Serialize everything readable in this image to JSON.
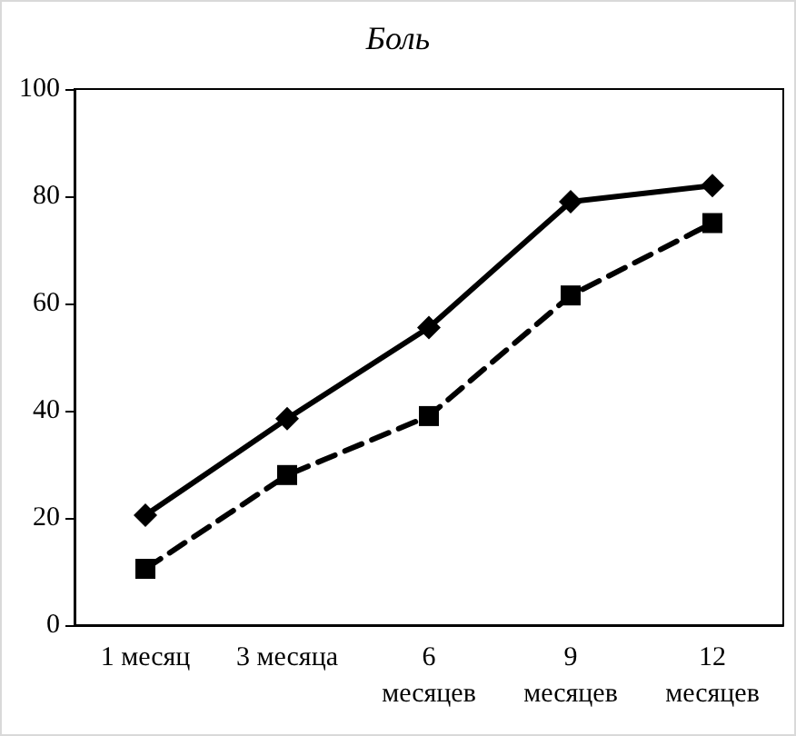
{
  "chart_data": {
    "type": "line",
    "title": "Боль",
    "categories": [
      "1 месяц",
      "3 месяца",
      "6 месяцев",
      "9 месяцев",
      "12 месяцев"
    ],
    "series": [
      {
        "color": "#000000",
        "values": [
          20.5,
          38.5,
          55.5,
          79,
          82
        ],
        "marker": "diamond",
        "line_style": "solid"
      },
      {
        "color": "#000000",
        "values": [
          10.5,
          28,
          39,
          61.5,
          75
        ],
        "marker": "square",
        "line_style": "dashed"
      }
    ],
    "ylim": [
      0,
      100
    ],
    "yticks": [
      0,
      20,
      40,
      60,
      80,
      100
    ]
  }
}
